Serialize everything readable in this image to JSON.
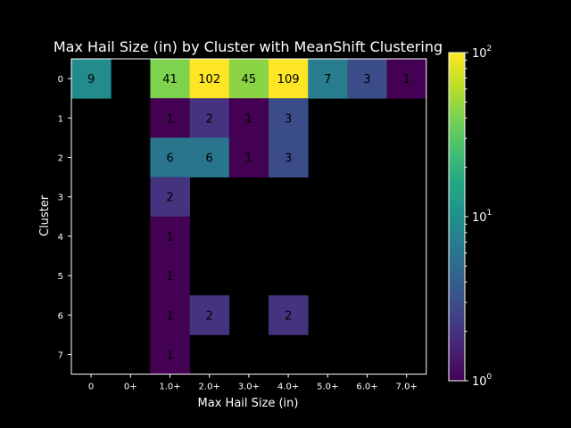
{
  "chart_data": {
    "type": "heatmap",
    "title": "Max Hail Size (in) by Cluster with MeanShift Clustering",
    "xlabel": "Max Hail Size (in)",
    "ylabel": "Cluster",
    "x_categories": [
      "0",
      "0+",
      "1.0+",
      "2.0+",
      "3.0+",
      "4.0+",
      "5.0+",
      "6.0+",
      "7.0+"
    ],
    "y_categories": [
      "0",
      "1",
      "2",
      "3",
      "4",
      "5",
      "6",
      "7"
    ],
    "values": [
      [
        9,
        null,
        41,
        102,
        45,
        109,
        7,
        3,
        1
      ],
      [
        null,
        null,
        1,
        2,
        1,
        3,
        null,
        null,
        null
      ],
      [
        null,
        null,
        6,
        6,
        1,
        3,
        null,
        null,
        null
      ],
      [
        null,
        null,
        2,
        null,
        null,
        null,
        null,
        null,
        null
      ],
      [
        null,
        null,
        1,
        null,
        null,
        null,
        null,
        null,
        null
      ],
      [
        null,
        null,
        1,
        null,
        null,
        null,
        null,
        null,
        null
      ],
      [
        null,
        null,
        1,
        2,
        null,
        2,
        null,
        null,
        null
      ],
      [
        null,
        null,
        1,
        null,
        null,
        null,
        null,
        null,
        null
      ]
    ],
    "colormap": "viridis",
    "color_scale": "log",
    "color_range": [
      1,
      100
    ],
    "colorbar_ticks": [
      {
        "value": 1,
        "base": "10",
        "exp": "0"
      },
      {
        "value": 10,
        "base": "10",
        "exp": "1"
      },
      {
        "value": 100,
        "base": "10",
        "exp": "2"
      }
    ],
    "empty_color": "#000000",
    "background": "#000000",
    "text_color": "#ffffff"
  }
}
